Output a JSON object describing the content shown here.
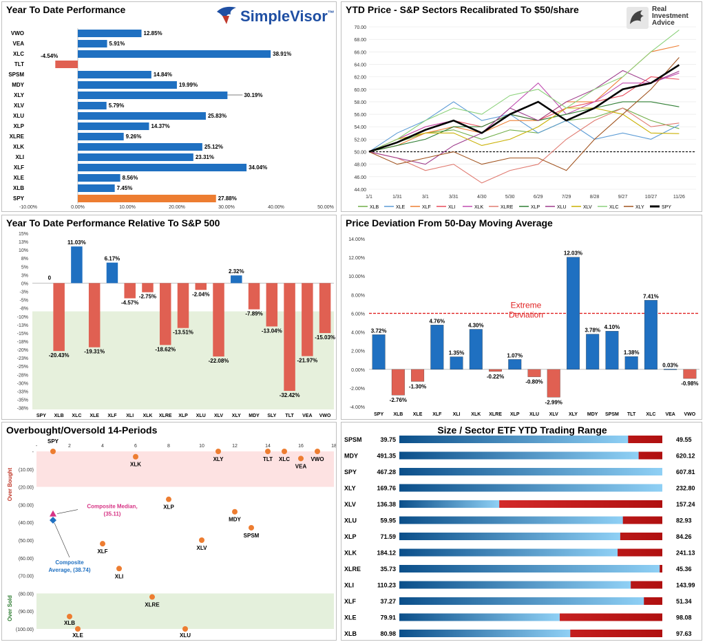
{
  "panels": {
    "ytd": {
      "title": "Year To Date Performance",
      "brand": "SimpleVisor",
      "brand_mark": "™"
    },
    "price": {
      "title": "YTD Price - S&P Sectors Recalibrated To $50/share",
      "brand_line1": "Real",
      "brand_line2": "Investment",
      "brand_line3": "Advice"
    },
    "relative": {
      "title": "Year To Date Performance Relative To S&P 500"
    },
    "deviation": {
      "title": "Price Deviation From 50-Day Moving Average"
    },
    "oversold": {
      "title": "Overbought/Oversold 14-Periods",
      "overbought_label": "Over Bought",
      "oversold_label": "Over Sold"
    },
    "range": {
      "title": "Size / Sector ETF YTD Trading Range"
    }
  },
  "colors": {
    "blue": "#1f70c1",
    "orange": "#ed7d31",
    "red": "#e06052",
    "dark_red": "#d42020",
    "gauge_dark": "#0b4f8a",
    "gauge_light": "#8fd0f5"
  },
  "chart_data": [
    {
      "type": "bar",
      "orientation": "horizontal",
      "title": "Year To Date Performance",
      "categories": [
        "VWO",
        "VEA",
        "XLC",
        "TLT",
        "SPSM",
        "MDY",
        "XLY",
        "XLV",
        "XLU",
        "XLP",
        "XLRE",
        "XLK",
        "XLI",
        "XLF",
        "XLE",
        "XLB",
        "SPY"
      ],
      "values": [
        12.85,
        5.91,
        38.91,
        -4.54,
        14.84,
        19.99,
        30.19,
        5.79,
        25.83,
        14.37,
        9.26,
        25.12,
        23.31,
        34.04,
        8.56,
        7.45,
        27.88
      ],
      "labels": [
        "12.85%",
        "5.91%",
        "38.91%",
        "-4.54%",
        "14.84%",
        "19.99%",
        "30.19%",
        "5.79%",
        "25.83%",
        "14.37%",
        "9.26%",
        "25.12%",
        "23.31%",
        "34.04%",
        "8.56%",
        "7.45%",
        "27.88%"
      ],
      "xlim": [
        -10,
        50
      ],
      "xticks": [
        "-10.00%",
        "0.00%",
        "10.00%",
        "20.00%",
        "30.00%",
        "40.00%",
        "50.00%"
      ]
    },
    {
      "type": "line",
      "title": "YTD Price - S&P Sectors Recalibrated To $50/share",
      "x_ticks": [
        "1/1",
        "1/31",
        "3/1",
        "3/31",
        "4/30",
        "5/30",
        "6/29",
        "7/29",
        "8/28",
        "9/27",
        "10/27",
        "11/26"
      ],
      "ylim": [
        44,
        70
      ],
      "y_ticks": [
        "44.00",
        "46.00",
        "48.00",
        "50.00",
        "52.00",
        "54.00",
        "56.00",
        "58.00",
        "60.00",
        "62.00",
        "64.00",
        "66.00",
        "68.00",
        "70.00"
      ],
      "reference_line": 50,
      "series": [
        {
          "name": "XLB",
          "color": "#70ad47",
          "values": [
            50,
            51.5,
            53,
            53.5,
            52,
            53.5,
            53,
            55,
            55.5,
            57,
            55,
            53.7
          ]
        },
        {
          "name": "XLE",
          "color": "#5b9bd5",
          "values": [
            50,
            53,
            55,
            58,
            55,
            56,
            53,
            55,
            52,
            53,
            52,
            54.3
          ]
        },
        {
          "name": "XLF",
          "color": "#ed7d31",
          "values": [
            50,
            51,
            53,
            54,
            53,
            55,
            55,
            58,
            58,
            62,
            66,
            67
          ]
        },
        {
          "name": "XLI",
          "color": "#e84b5a",
          "values": [
            50,
            52,
            54,
            55,
            54,
            56,
            55,
            57,
            58,
            59,
            62,
            61.6
          ]
        },
        {
          "name": "XLK",
          "color": "#c04bb0",
          "values": [
            50,
            52,
            54,
            55,
            53,
            57,
            61,
            56,
            58,
            61,
            61,
            62.6
          ]
        },
        {
          "name": "XLRE",
          "color": "#e07a70",
          "values": [
            50,
            49,
            47,
            48,
            45,
            47,
            48,
            52,
            55,
            57,
            54,
            54.6
          ]
        },
        {
          "name": "XLP",
          "color": "#2e7d32",
          "values": [
            50,
            51,
            52,
            54,
            54,
            56,
            55,
            56,
            57,
            58,
            58,
            57.2
          ]
        },
        {
          "name": "XLU",
          "color": "#9e3b8c",
          "values": [
            50,
            49,
            48,
            51,
            53,
            57,
            55,
            58,
            60,
            63,
            61,
            62.9
          ]
        },
        {
          "name": "XLV",
          "color": "#c9b000",
          "values": [
            50,
            52,
            53,
            53,
            51,
            52,
            54,
            57,
            57,
            56,
            53,
            52.9
          ]
        },
        {
          "name": "XLC",
          "color": "#8bd17a",
          "values": [
            50,
            52,
            55,
            57,
            56,
            59,
            60,
            57,
            60,
            62,
            66,
            69.5
          ]
        },
        {
          "name": "XLY",
          "color": "#a0521d",
          "values": [
            50,
            48,
            49,
            50,
            48,
            49,
            49,
            47,
            52,
            56,
            60,
            65.1
          ]
        },
        {
          "name": "SPY",
          "color": "#000000",
          "values": [
            50,
            51.5,
            53.5,
            55,
            53,
            56,
            58,
            55,
            57,
            60,
            61,
            63.9
          ]
        }
      ]
    },
    {
      "type": "bar",
      "title": "Year To Date Performance Relative To S&P 500",
      "categories": [
        "SPY",
        "XLB",
        "XLC",
        "XLE",
        "XLF",
        "XLI",
        "XLK",
        "XLRE",
        "XLP",
        "XLU",
        "XLV",
        "XLY",
        "MDY",
        "SLY",
        "TLT",
        "VEA",
        "VWO"
      ],
      "values": [
        0,
        -20.43,
        11.03,
        -19.31,
        6.17,
        -4.57,
        -2.75,
        -18.62,
        -13.51,
        -2.04,
        -22.08,
        2.32,
        -7.89,
        -13.04,
        -32.42,
        -21.97,
        -15.03
      ],
      "labels": [
        "0",
        "-20.43%",
        "11.03%",
        "-19.31%",
        "6.17%",
        "-4.57%",
        "-2.75%",
        "-18.62%",
        "-13.51%",
        "-2.04%",
        "-22.08%",
        "2.32%",
        "-7.89%",
        "-13.04%",
        "-32.42%",
        "-21.97%",
        "-15.03%"
      ],
      "ylim": [
        -38,
        15
      ],
      "y_ticks": [
        "15%",
        "13%",
        "10%",
        "8%",
        "5%",
        "3%",
        "0%",
        "-3%",
        "-5%",
        "-8%",
        "-10%",
        "-13%",
        "-15%",
        "-18%",
        "-20%",
        "-23%",
        "-25%",
        "-28%",
        "-30%",
        "-33%",
        "-35%",
        "-38%"
      ],
      "shaded_below": -8.5
    },
    {
      "type": "bar",
      "title": "Price Deviation From 50-Day Moving Average",
      "categories": [
        "SPY",
        "XLB",
        "XLE",
        "XLF",
        "XLI",
        "XLK",
        "XLRE",
        "XLP",
        "XLU",
        "XLV",
        "XLY",
        "MDY",
        "SPSM",
        "TLT",
        "XLC",
        "VEA",
        "VWO"
      ],
      "values": [
        3.72,
        -2.76,
        -1.3,
        4.76,
        1.35,
        4.3,
        -0.22,
        1.07,
        -0.8,
        -2.99,
        12.03,
        3.78,
        4.1,
        1.38,
        7.41,
        0.03,
        -0.98
      ],
      "labels": [
        "3.72%",
        "-2.76%",
        "-1.30%",
        "4.76%",
        "1.35%",
        "4.30%",
        "-0.22%",
        "1.07%",
        "-0.80%",
        "-2.99%",
        "12.03%",
        "3.78%",
        "4.10%",
        "1.38%",
        "7.41%",
        "0.03%",
        "-0.98%"
      ],
      "ylim": [
        -4,
        14
      ],
      "y_ticks": [
        "14.00%",
        "12.00%",
        "10.00%",
        "8.00%",
        "6.00%",
        "4.00%",
        "2.00%",
        "0.00%",
        "-2.00%",
        "-4.00%"
      ],
      "threshold": 6,
      "threshold_label_1": "Extreme",
      "threshold_label_2": "Deviation"
    },
    {
      "type": "scatter",
      "title": "Overbought/Oversold 14-Periods",
      "xlim": [
        0,
        18
      ],
      "x_ticks": [
        "-",
        "2",
        "4",
        "6",
        "8",
        "10",
        "12",
        "14",
        "16",
        "18"
      ],
      "ylim": [
        -100,
        0
      ],
      "y_ticks": [
        "-",
        "(10.00)",
        "(20.00)",
        "(30.00)",
        "(40.00)",
        "(50.00)",
        "(60.00)",
        "(70.00)",
        "(80.00)",
        "(90.00)",
        "(100.00)"
      ],
      "points": [
        {
          "label": "SPY",
          "x": 1,
          "y": 0
        },
        {
          "label": "XLK",
          "x": 6,
          "y": -3
        },
        {
          "label": "XLY",
          "x": 11,
          "y": 0
        },
        {
          "label": "TLT",
          "x": 14,
          "y": 0
        },
        {
          "label": "XLC",
          "x": 15,
          "y": 0
        },
        {
          "label": "VWO",
          "x": 17,
          "y": 0
        },
        {
          "label": "VEA",
          "x": 16,
          "y": -4
        },
        {
          "label": "XLP",
          "x": 8,
          "y": -27
        },
        {
          "label": "MDY",
          "x": 12,
          "y": -34
        },
        {
          "label": "SPSM",
          "x": 13,
          "y": -43
        },
        {
          "label": "XLV",
          "x": 10,
          "y": -50
        },
        {
          "label": "XLF",
          "x": 4,
          "y": -52
        },
        {
          "label": "XLI",
          "x": 5,
          "y": -66
        },
        {
          "label": "XLRE",
          "x": 7,
          "y": -82
        },
        {
          "label": "XLB",
          "x": 2,
          "y": -93
        },
        {
          "label": "XLE",
          "x": 2.5,
          "y": -100
        },
        {
          "label": "XLU",
          "x": 9,
          "y": -100
        }
      ],
      "composite_median": {
        "label": "Composite Median,",
        "value": "(35.11)",
        "y": -35.11
      },
      "composite_average": {
        "label": "Composite",
        "label2": "Average,",
        "value": "(38.74)",
        "y": -38.74
      },
      "overbought_zone": [
        -20,
        0
      ],
      "oversold_zone": [
        -100,
        -80
      ]
    },
    {
      "type": "table",
      "title": "Size / Sector ETF YTD Trading Range",
      "rows": [
        {
          "ticker": "SPSM",
          "low": "39.75",
          "high": "49.55",
          "position": 0.87
        },
        {
          "ticker": "MDY",
          "low": "491.35",
          "high": "620.12",
          "position": 0.91
        },
        {
          "ticker": "SPY",
          "low": "467.28",
          "high": "607.81",
          "position": 1.0
        },
        {
          "ticker": "XLY",
          "low": "169.76",
          "high": "232.80",
          "position": 1.0
        },
        {
          "ticker": "XLV",
          "low": "136.38",
          "high": "157.24",
          "position": 0.38
        },
        {
          "ticker": "XLU",
          "low": "59.95",
          "high": "82.93",
          "position": 0.85
        },
        {
          "ticker": "XLP",
          "low": "71.59",
          "high": "84.26",
          "position": 0.84
        },
        {
          "ticker": "XLK",
          "low": "184.12",
          "high": "241.13",
          "position": 0.83
        },
        {
          "ticker": "XLRE",
          "low": "35.73",
          "high": "45.36",
          "position": 0.99
        },
        {
          "ticker": "XLI",
          "low": "110.23",
          "high": "143.99",
          "position": 0.88
        },
        {
          "ticker": "XLF",
          "low": "37.27",
          "high": "51.34",
          "position": 0.93
        },
        {
          "ticker": "XLE",
          "low": "79.91",
          "high": "98.08",
          "position": 0.61
        },
        {
          "ticker": "XLB",
          "low": "80.98",
          "high": "97.63",
          "position": 0.65
        }
      ]
    }
  ]
}
